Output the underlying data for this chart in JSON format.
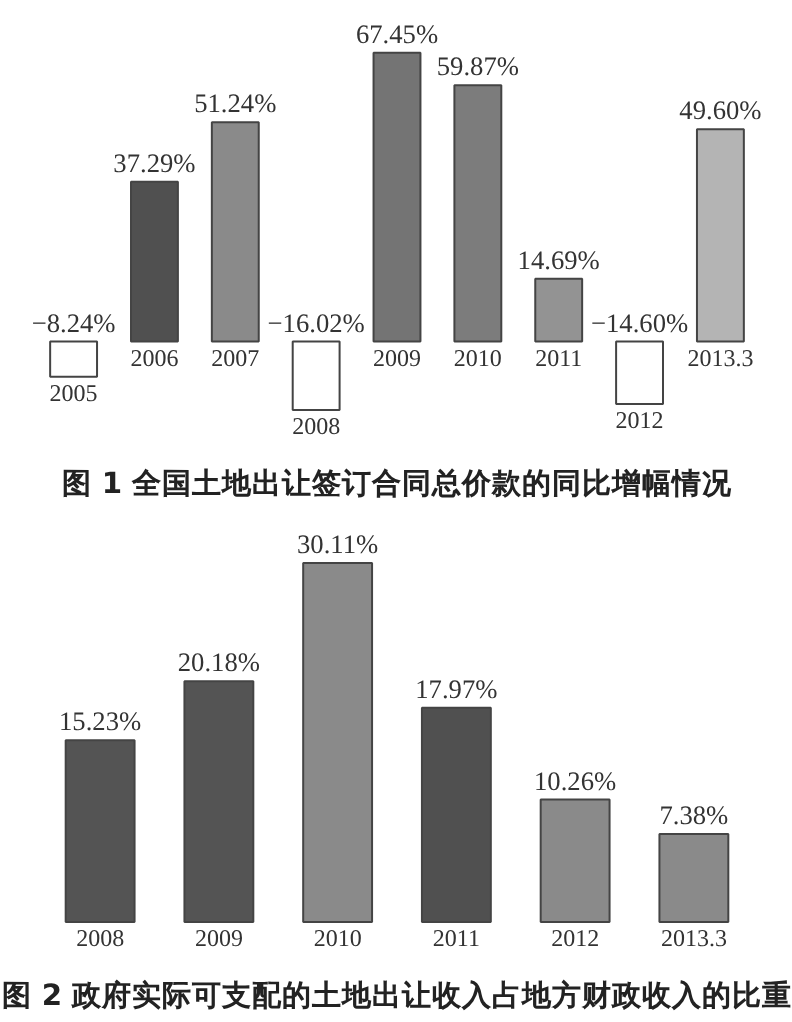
{
  "chart_data": [
    {
      "type": "bar",
      "title": "图 1 全国土地出让签订合同总价款的同比增幅情况",
      "categories": [
        "2005",
        "2006",
        "2007",
        "2008",
        "2009",
        "2010",
        "2011",
        "2012",
        "2013.3"
      ],
      "values": [
        -8.24,
        37.29,
        51.24,
        -16.02,
        67.45,
        59.87,
        14.69,
        -14.6,
        49.6
      ],
      "value_labels": [
        "−8.24%",
        "37.29%",
        "51.24%",
        "−16.02%",
        "67.45%",
        "59.87%",
        "14.69%",
        "−14.60%",
        "49.60%"
      ],
      "colors": [
        "#ffffff",
        "#505050",
        "#8a8a8a",
        "#ffffff",
        "#747474",
        "#7c7c7c",
        "#939393",
        "#ffffff",
        "#b4b4b4"
      ]
    },
    {
      "type": "bar",
      "title": "图 2 政府实际可支配的土地出让收入占地方财政收入的比重",
      "categories": [
        "2008",
        "2009",
        "2010",
        "2011",
        "2012",
        "2013.3"
      ],
      "values": [
        15.23,
        20.18,
        30.11,
        17.97,
        10.26,
        7.38
      ],
      "value_labels": [
        "15.23%",
        "20.18%",
        "30.11%",
        "17.97%",
        "10.26%",
        "7.38%"
      ],
      "colors": [
        "#545454",
        "#545454",
        "#8a8a8a",
        "#505050",
        "#8a8a8a",
        "#8a8a8a"
      ]
    }
  ]
}
